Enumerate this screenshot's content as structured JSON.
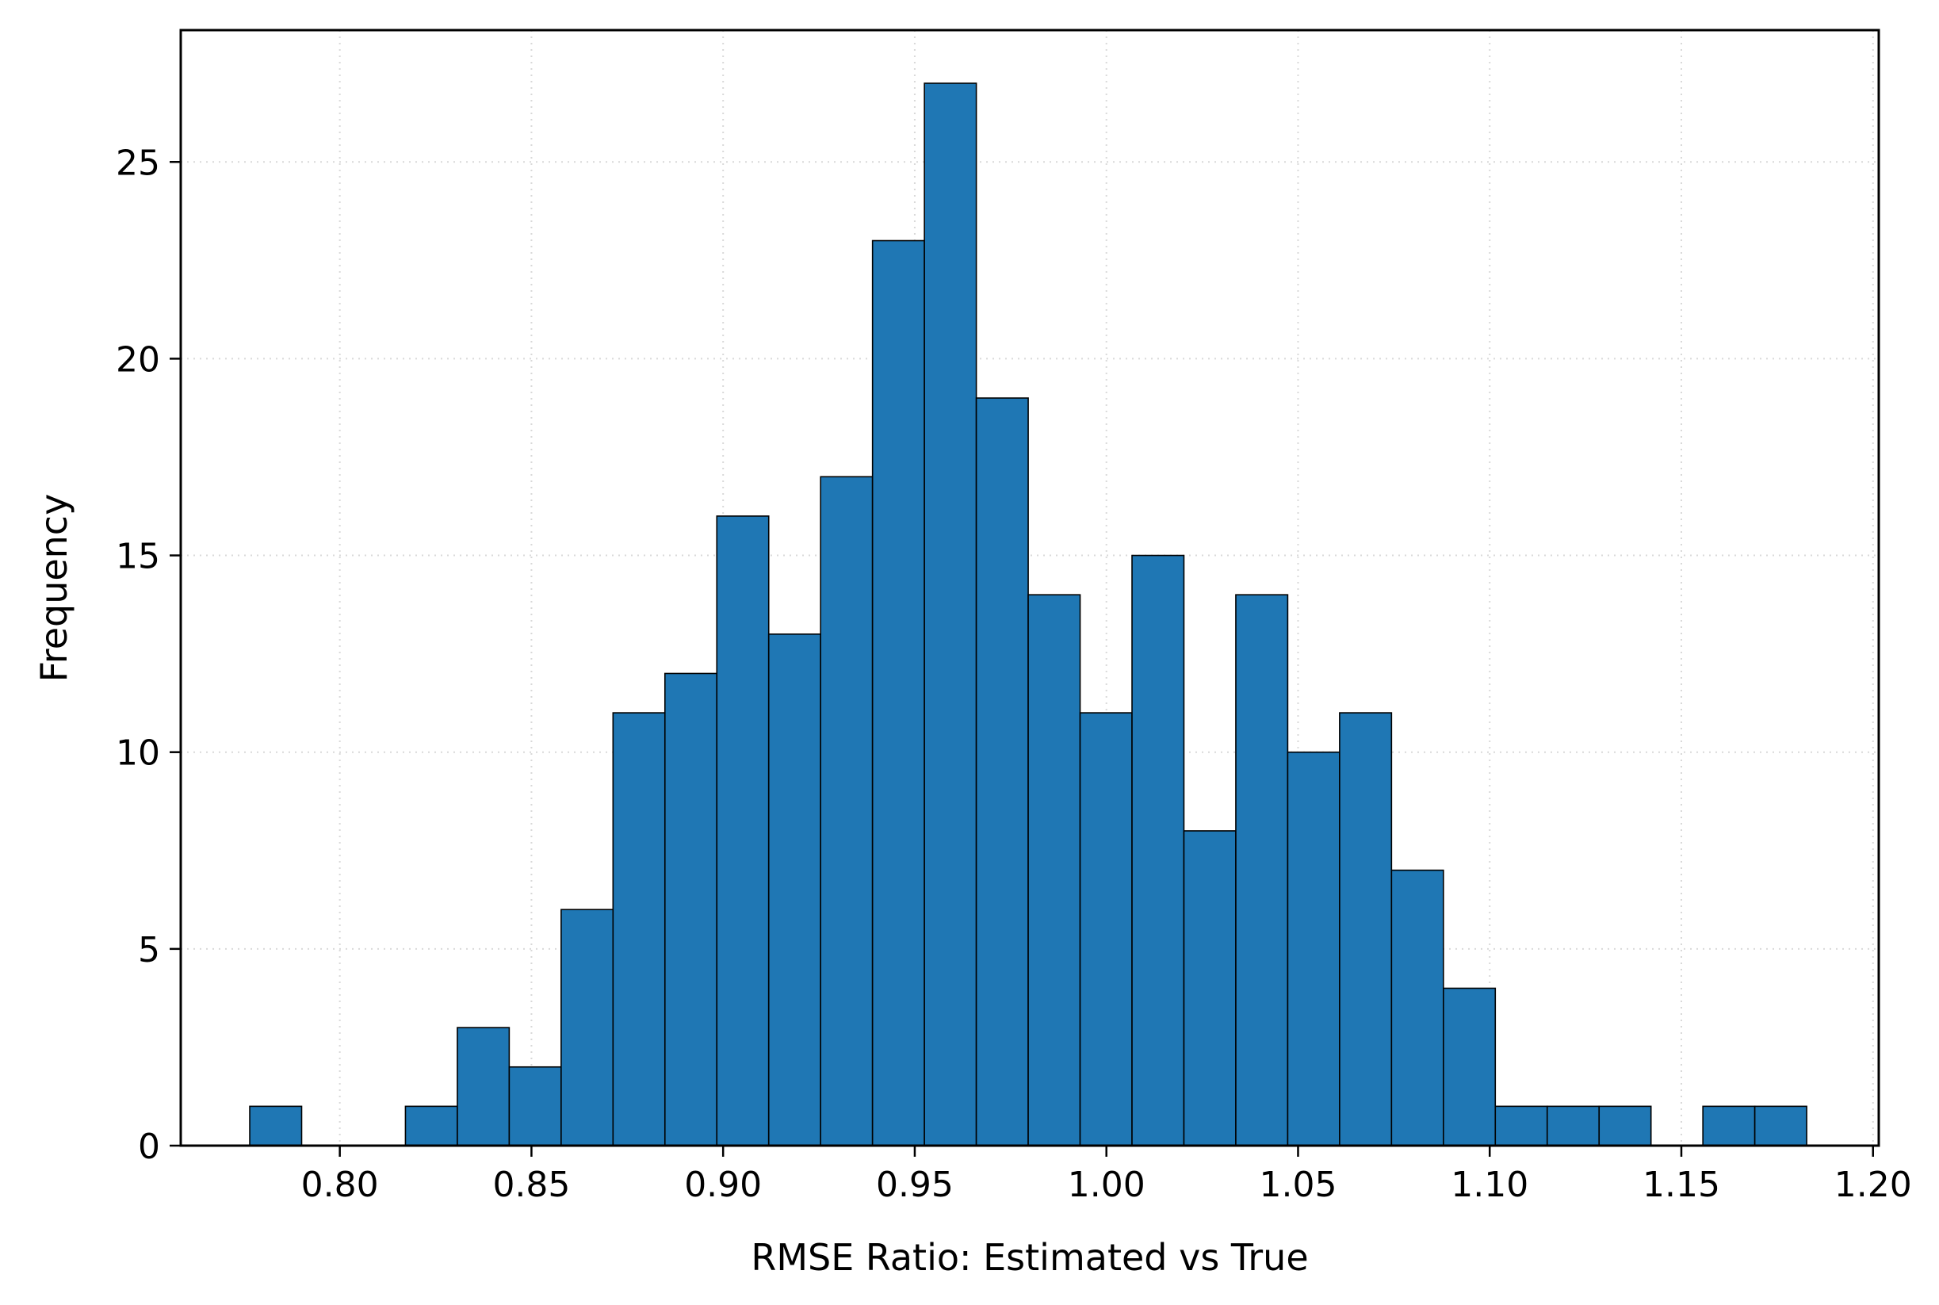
{
  "chart_data": {
    "type": "bar",
    "title": "",
    "xlabel": "RMSE Ratio: Estimated vs True",
    "ylabel": "Frequency",
    "xlim": [
      0.7585,
      1.2015
    ],
    "ylim": [
      0,
      28.35
    ],
    "grid": true,
    "bar_color": "#1f77b4",
    "edge_color": "#000000",
    "x_ticks": [
      0.8,
      0.85,
      0.9,
      0.95,
      1.0,
      1.05,
      1.1,
      1.15,
      1.2
    ],
    "x_tick_labels": [
      "0.80",
      "0.85",
      "0.90",
      "0.95",
      "1.00",
      "1.05",
      "1.10",
      "1.15",
      "1.20"
    ],
    "y_ticks": [
      0,
      5,
      10,
      15,
      20,
      25
    ],
    "y_tick_labels": [
      "0",
      "5",
      "10",
      "15",
      "20",
      "25"
    ],
    "bin_start": 0.7765,
    "bin_width": 0.01354,
    "values": [
      1,
      0,
      0,
      1,
      3,
      2,
      6,
      11,
      12,
      16,
      13,
      17,
      23,
      27,
      19,
      14,
      11,
      15,
      8,
      14,
      10,
      11,
      7,
      4,
      1,
      1,
      1,
      0,
      1,
      1
    ]
  }
}
